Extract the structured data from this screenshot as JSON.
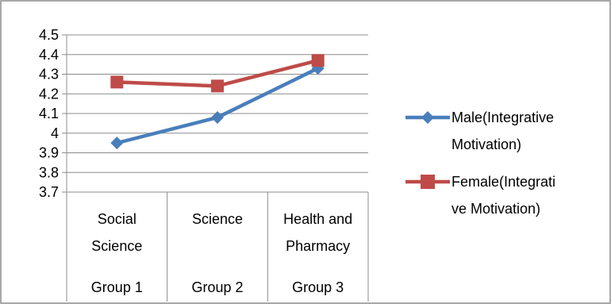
{
  "chart_data": {
    "type": "line",
    "categories": [
      {
        "lines": [
          "Social",
          "Science"
        ],
        "group": "Group 1"
      },
      {
        "lines": [
          "Science"
        ],
        "group": "Group 2"
      },
      {
        "lines": [
          "Health and",
          "Pharmacy"
        ],
        "group": "Group 3"
      }
    ],
    "series": [
      {
        "name_lines": [
          " Male(Integrative",
          "Motivation)"
        ],
        "values": [
          3.95,
          4.08,
          4.33
        ],
        "color": "#4a7ebb",
        "marker": "diamond"
      },
      {
        "name_lines": [
          "Female(Integrati",
          "ve Motivation)"
        ],
        "values": [
          4.26,
          4.24,
          4.37
        ],
        "color": "#be4b48",
        "marker": "square"
      }
    ],
    "ylim": [
      3.7,
      4.5
    ],
    "yticks": [
      "3.7",
      "3.8",
      "3.9",
      "4",
      "4.1",
      "4.2",
      "4.3",
      "4.4",
      "4.5"
    ],
    "grid": true,
    "legend": "right",
    "title": "",
    "xlabel": "",
    "ylabel": ""
  }
}
